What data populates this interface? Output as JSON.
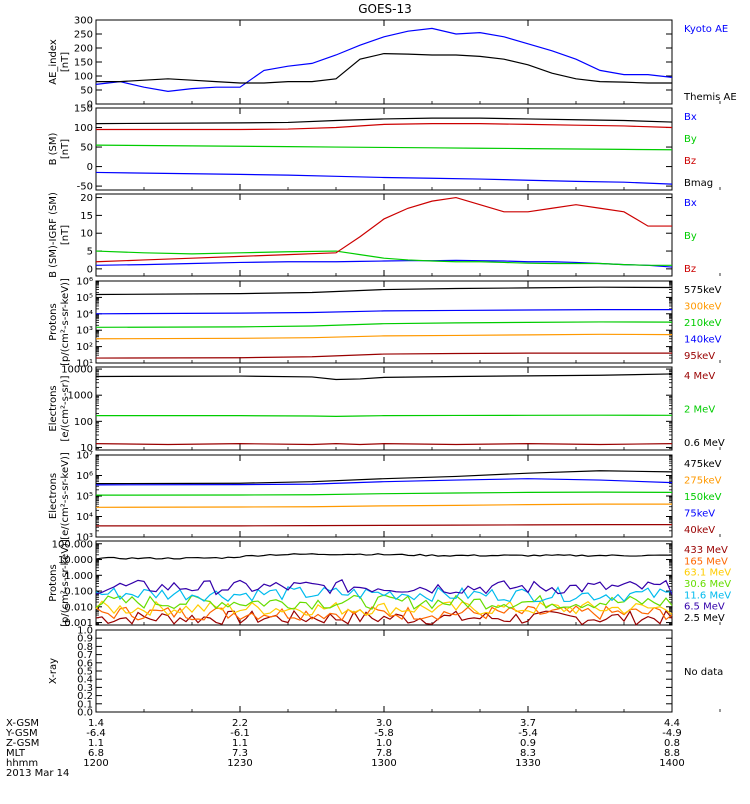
{
  "title": "GOES-13",
  "date_label": "2013 Mar 14",
  "chart_data": [
    {
      "type": "line",
      "panel": "ae-index",
      "ylabel": [
        "AE_index",
        "[nT]"
      ],
      "ylim": [
        0,
        300
      ],
      "yscale": "linear",
      "yticks": [
        {
          "v": 0,
          "t": "0"
        },
        {
          "v": 50,
          "t": "50"
        },
        {
          "v": 100,
          "t": "100"
        },
        {
          "v": 150,
          "t": "150"
        },
        {
          "v": 200,
          "t": "200"
        },
        {
          "v": 250,
          "t": "250"
        },
        {
          "v": 300,
          "t": "300"
        }
      ],
      "x": [
        1200,
        1205,
        1210,
        1215,
        1220,
        1225,
        1230,
        1235,
        1240,
        1245,
        1250,
        1255,
        1300,
        1305,
        1310,
        1315,
        1320,
        1325,
        1330,
        1335,
        1340,
        1345,
        1350,
        1355,
        1400
      ],
      "series": [
        {
          "name": "Kyoto AE",
          "color": "#0000ff",
          "values": [
            70,
            80,
            60,
            45,
            55,
            60,
            60,
            120,
            135,
            145,
            175,
            210,
            240,
            260,
            270,
            250,
            255,
            240,
            215,
            190,
            160,
            120,
            105,
            105,
            95
          ]
        },
        {
          "name": "Themis AE",
          "color": "#000000",
          "values": [
            80,
            80,
            85,
            90,
            85,
            80,
            75,
            75,
            80,
            80,
            90,
            160,
            180,
            178,
            175,
            175,
            170,
            160,
            140,
            110,
            90,
            80,
            78,
            75,
            75
          ]
        }
      ]
    },
    {
      "type": "line",
      "panel": "b-sm",
      "ylabel": [
        "B (SM)",
        "[nT]"
      ],
      "ylim": [
        -60,
        150
      ],
      "yscale": "linear",
      "yticks": [
        {
          "v": -50,
          "t": "-50"
        },
        {
          "v": 0,
          "t": "0"
        },
        {
          "v": 50,
          "t": "50"
        },
        {
          "v": 100,
          "t": "100"
        },
        {
          "v": 150,
          "t": "150"
        }
      ],
      "x": [
        1200,
        1230,
        1240,
        1250,
        1300,
        1310,
        1320,
        1330,
        1340,
        1350,
        1400
      ],
      "series": [
        {
          "name": "Bx",
          "color": "#0000ff",
          "values": [
            -15,
            -20,
            -22,
            -25,
            -28,
            -30,
            -32,
            -35,
            -38,
            -40,
            -45
          ]
        },
        {
          "name": "By",
          "color": "#00cc00",
          "values": [
            55,
            52,
            51,
            50,
            49,
            48,
            47,
            46,
            45,
            44,
            43
          ]
        },
        {
          "name": "Bz",
          "color": "#cc0000",
          "values": [
            95,
            95,
            96,
            100,
            108,
            110,
            110,
            108,
            106,
            104,
            100
          ]
        },
        {
          "name": "Bmag",
          "color": "#000000",
          "values": [
            110,
            112,
            113,
            118,
            122,
            124,
            124,
            122,
            120,
            118,
            114
          ]
        }
      ]
    },
    {
      "type": "line",
      "panel": "b-minus-igrf",
      "ylabel": [
        "B (SM)-IGRF (SM)",
        "[nT]"
      ],
      "ylim": [
        -2,
        21
      ],
      "yscale": "linear",
      "yticks": [
        {
          "v": 0,
          "t": "0"
        },
        {
          "v": 5,
          "t": "5"
        },
        {
          "v": 10,
          "t": "10"
        },
        {
          "v": 15,
          "t": "15"
        },
        {
          "v": 20,
          "t": "20"
        }
      ],
      "x": [
        1200,
        1210,
        1220,
        1230,
        1240,
        1250,
        1255,
        1300,
        1305,
        1310,
        1315,
        1320,
        1325,
        1330,
        1335,
        1340,
        1345,
        1350,
        1355,
        1400
      ],
      "series": [
        {
          "name": "Bx",
          "color": "#0000ff",
          "values": [
            1,
            1.2,
            1.5,
            1.8,
            2,
            2,
            2.1,
            2.2,
            2.3,
            2.3,
            2.4,
            2.3,
            2.2,
            2,
            2,
            1.8,
            1.5,
            1.2,
            1,
            0.5
          ]
        },
        {
          "name": "By",
          "color": "#00cc00",
          "values": [
            5,
            4.5,
            4.2,
            4.5,
            4.8,
            5,
            4,
            3,
            2.5,
            2.2,
            2,
            2,
            1.8,
            1.6,
            1.5,
            1.5,
            1.5,
            1.2,
            1,
            1
          ]
        },
        {
          "name": "Bz",
          "color": "#cc0000",
          "values": [
            2,
            2.5,
            3,
            3.5,
            4,
            4.5,
            9,
            14,
            17,
            19,
            20,
            18,
            16,
            16,
            17,
            18,
            17,
            16,
            12,
            12
          ]
        }
      ]
    },
    {
      "type": "line",
      "panel": "protons-low",
      "ylabel": [
        "Protons",
        "[p/(cm²-s-sr-keV)]"
      ],
      "ylim": [
        10,
        1000000
      ],
      "yscale": "log",
      "yticks": [
        {
          "v": 10,
          "t": "10¹"
        },
        {
          "v": 100,
          "t": "10²"
        },
        {
          "v": 1000,
          "t": "10³"
        },
        {
          "v": 10000,
          "t": "10⁴"
        },
        {
          "v": 100000,
          "t": "10⁵"
        },
        {
          "v": 1000000,
          "t": "10⁶"
        }
      ],
      "x": [
        1200,
        1230,
        1245,
        1300,
        1315,
        1330,
        1345,
        1400
      ],
      "series": [
        {
          "name": "575keV",
          "color": "#000000",
          "values": [
            150000,
            170000,
            200000,
            300000,
            350000,
            380000,
            420000,
            400000
          ]
        },
        {
          "name": "300keV",
          "color": "#ff9900",
          "values": [
            300,
            320,
            350,
            450,
            480,
            520,
            560,
            540
          ]
        },
        {
          "name": "210keV",
          "color": "#00cc00",
          "values": [
            1500,
            1600,
            1800,
            2500,
            2800,
            3000,
            3200,
            3100
          ]
        },
        {
          "name": "140keV",
          "color": "#0000ff",
          "values": [
            10000,
            11000,
            12000,
            15000,
            16000,
            17000,
            18000,
            18000
          ]
        },
        {
          "name": "95keV",
          "color": "#990000",
          "values": [
            20,
            21,
            24,
            35,
            38,
            40,
            40,
            40
          ]
        }
      ]
    },
    {
      "type": "line",
      "panel": "electrons-mev",
      "ylabel": [
        "Electrons",
        "[e/(cm²-s-sr)]"
      ],
      "ylim": [
        8,
        12000
      ],
      "yscale": "log",
      "yticks": [
        {
          "v": 10,
          "t": "10"
        },
        {
          "v": 100,
          "t": "100"
        },
        {
          "v": 1000,
          "t": "1000"
        },
        {
          "v": 10000,
          "t": "10000"
        }
      ],
      "x": [
        1200,
        1215,
        1230,
        1245,
        1250,
        1255,
        1300,
        1315,
        1330,
        1345,
        1400
      ],
      "series": [
        {
          "name": "4 MeV",
          "color": "#990000",
          "values": [
            14,
            13,
            14,
            13,
            14,
            13,
            14,
            13,
            14,
            13,
            14
          ]
        },
        {
          "name": "2 MeV",
          "color": "#00cc00",
          "values": [
            165,
            165,
            165,
            160,
            155,
            160,
            165,
            168,
            170,
            172,
            170
          ]
        },
        {
          "name": "0.6 MeV",
          "color": "#000000",
          "values": [
            5200,
            5300,
            5400,
            5000,
            4000,
            4200,
            4800,
            5200,
            5500,
            5800,
            6500
          ]
        }
      ]
    },
    {
      "type": "line",
      "panel": "electrons-kev",
      "ylabel": [
        "Electrons",
        "[e/(cm²-s-sr-keV)]"
      ],
      "ylim": [
        1000,
        10000000
      ],
      "yscale": "log",
      "yticks": [
        {
          "v": 1000,
          "t": "10³"
        },
        {
          "v": 10000,
          "t": "10⁴"
        },
        {
          "v": 100000,
          "t": "10⁵"
        },
        {
          "v": 1000000,
          "t": "10⁶"
        },
        {
          "v": 10000000,
          "t": "10⁷"
        }
      ],
      "x": [
        1200,
        1230,
        1245,
        1300,
        1315,
        1330,
        1345,
        1400
      ],
      "series": [
        {
          "name": "475keV",
          "color": "#000000",
          "values": [
            400000,
            420000,
            500000,
            700000,
            900000,
            1300000,
            1700000,
            1500000
          ]
        },
        {
          "name": "275keV",
          "color": "#ff9900",
          "values": [
            28000,
            29000,
            30000,
            33000,
            35000,
            38000,
            40000,
            40000
          ]
        },
        {
          "name": "150keV",
          "color": "#00cc00",
          "values": [
            110000,
            112000,
            115000,
            130000,
            140000,
            150000,
            155000,
            150000
          ]
        },
        {
          "name": "75keV",
          "color": "#0000ff",
          "values": [
            350000,
            360000,
            380000,
            500000,
            600000,
            700000,
            600000,
            450000
          ]
        },
        {
          "name": "40keV",
          "color": "#990000",
          "values": [
            3500,
            3500,
            3600,
            3700,
            3800,
            3900,
            4000,
            4000
          ]
        }
      ]
    },
    {
      "type": "line",
      "panel": "protons-high",
      "ylabel": [
        "Protons",
        "[p/(cm²-s-sr-keV)]"
      ],
      "ylim": [
        0.0007,
        150
      ],
      "yscale": "log",
      "yticks": [
        {
          "v": 0.001,
          "t": "0.001"
        },
        {
          "v": 0.01,
          "t": "0.010"
        },
        {
          "v": 0.1,
          "t": "0.100"
        },
        {
          "v": 1,
          "t": "1.000"
        },
        {
          "v": 10,
          "t": "10.000"
        },
        {
          "v": 100,
          "t": "100.000"
        }
      ],
      "noisy": true,
      "x": [
        1200,
        1230,
        1245,
        1300,
        1315,
        1330,
        1345,
        1400
      ],
      "series": [
        {
          "name": "433 MeV",
          "color": "#990000",
          "values": [
            0.002,
            0.002,
            0.002,
            0.002,
            0.002,
            0.002,
            0.002,
            0.002
          ]
        },
        {
          "name": "165 MeV",
          "color": "#ff6600",
          "values": [
            0.004,
            0.004,
            0.004,
            0.004,
            0.004,
            0.004,
            0.004,
            0.004
          ]
        },
        {
          "name": "63.1 MeV",
          "color": "#ffcc00",
          "values": [
            0.008,
            0.008,
            0.008,
            0.008,
            0.008,
            0.008,
            0.008,
            0.008
          ]
        },
        {
          "name": "30.6 MeV",
          "color": "#66dd00",
          "values": [
            0.02,
            0.02,
            0.02,
            0.02,
            0.02,
            0.02,
            0.02,
            0.02
          ]
        },
        {
          "name": "11.6 MeV",
          "color": "#00bbee",
          "values": [
            0.07,
            0.07,
            0.06,
            0.07,
            0.07,
            0.07,
            0.07,
            0.06
          ]
        },
        {
          "name": "6.5 MeV",
          "color": "#3300aa",
          "values": [
            0.18,
            0.18,
            0.17,
            0.18,
            0.18,
            0.19,
            0.18,
            0.17
          ]
        },
        {
          "name": "2.5 MeV",
          "color": "#000000",
          "values": [
            12,
            12,
            13,
            20,
            22,
            22,
            20,
            18
          ]
        }
      ]
    },
    {
      "type": "line",
      "panel": "x-ray",
      "ylabel": [
        "X-ray",
        ""
      ],
      "ylim": [
        0,
        1
      ],
      "yscale": "linear",
      "yticks": [
        {
          "v": 0,
          "t": "0.0"
        },
        {
          "v": 0.1,
          "t": "0.1"
        },
        {
          "v": 0.2,
          "t": "0.2"
        },
        {
          "v": 0.3,
          "t": "0.3"
        },
        {
          "v": 0.4,
          "t": "0.4"
        },
        {
          "v": 0.5,
          "t": "0.5"
        },
        {
          "v": 0.6,
          "t": "0.6"
        },
        {
          "v": 0.7,
          "t": "0.7"
        },
        {
          "v": 0.8,
          "t": "0.8"
        },
        {
          "v": 0.9,
          "t": "0.9"
        },
        {
          "v": 1,
          "t": "1.0"
        }
      ],
      "x": [],
      "series": [],
      "note": "No data"
    }
  ],
  "xaxis": {
    "row_labels": [
      "X-GSM",
      "Y-GSM",
      "Z-GSM",
      "MLT",
      "hhmm"
    ],
    "ticks": [
      {
        "x": 1200,
        "vals": [
          "1.4",
          "-6.4",
          "1.1",
          "6.8",
          "1200"
        ]
      },
      {
        "x": 1230,
        "vals": [
          "2.2",
          "-6.1",
          "1.1",
          "7.3",
          "1230"
        ]
      },
      {
        "x": 1300,
        "vals": [
          "3.0",
          "-5.8",
          "1.0",
          "7.8",
          "1300"
        ]
      },
      {
        "x": 1330,
        "vals": [
          "3.7",
          "-5.4",
          "0.9",
          "8.3",
          "1330"
        ]
      },
      {
        "x": 1400,
        "vals": [
          "4.4",
          "-4.9",
          "0.8",
          "8.8",
          "1400"
        ]
      }
    ]
  }
}
